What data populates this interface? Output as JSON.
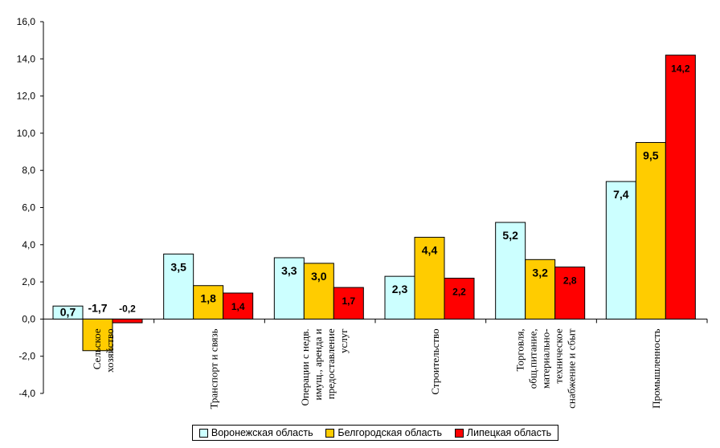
{
  "chart_data": {
    "type": "bar",
    "categories": [
      [
        "Сельское",
        "хозяйство"
      ],
      [
        "Транспорт и связь"
      ],
      [
        "Операции с недв.",
        "имущ., аренда и",
        "предоставление",
        "услуг"
      ],
      [
        "Строительство"
      ],
      [
        "Торговля,",
        "общ.питание,",
        "материально-",
        "техническое",
        "снабжение и сбыт"
      ],
      [
        "Промышленность"
      ]
    ],
    "series": [
      {
        "name": "Воронежская область",
        "color": "#ccffff",
        "values": [
          0.7,
          3.5,
          3.3,
          2.3,
          5.2,
          7.4
        ],
        "labels": [
          "0,7",
          "3,5",
          "3,3",
          "2,3",
          "5,2",
          "7,4"
        ]
      },
      {
        "name": "Белгородская область",
        "color": "#ffcc00",
        "values": [
          -1.7,
          1.8,
          3.0,
          4.4,
          3.2,
          9.5
        ],
        "labels": [
          "-1,7",
          "1,8",
          "3,0",
          "4,4",
          "3,2",
          "9,5"
        ]
      },
      {
        "name": "Липецкая область",
        "color": "#ff0000",
        "values": [
          -0.2,
          1.4,
          1.7,
          2.2,
          2.8,
          14.2
        ],
        "labels": [
          "-0,2",
          "1,4",
          "1,7",
          "2,2",
          "2,8",
          "14,2"
        ]
      }
    ],
    "yticks": [
      "-4,0",
      "-2,0",
      "0,0",
      "2,0",
      "4,0",
      "6,0",
      "8,0",
      "10,0",
      "12,0",
      "14,0",
      "16,0"
    ],
    "ylim": [
      -4,
      16
    ],
    "legend_position": "bottom",
    "grid": false
  }
}
